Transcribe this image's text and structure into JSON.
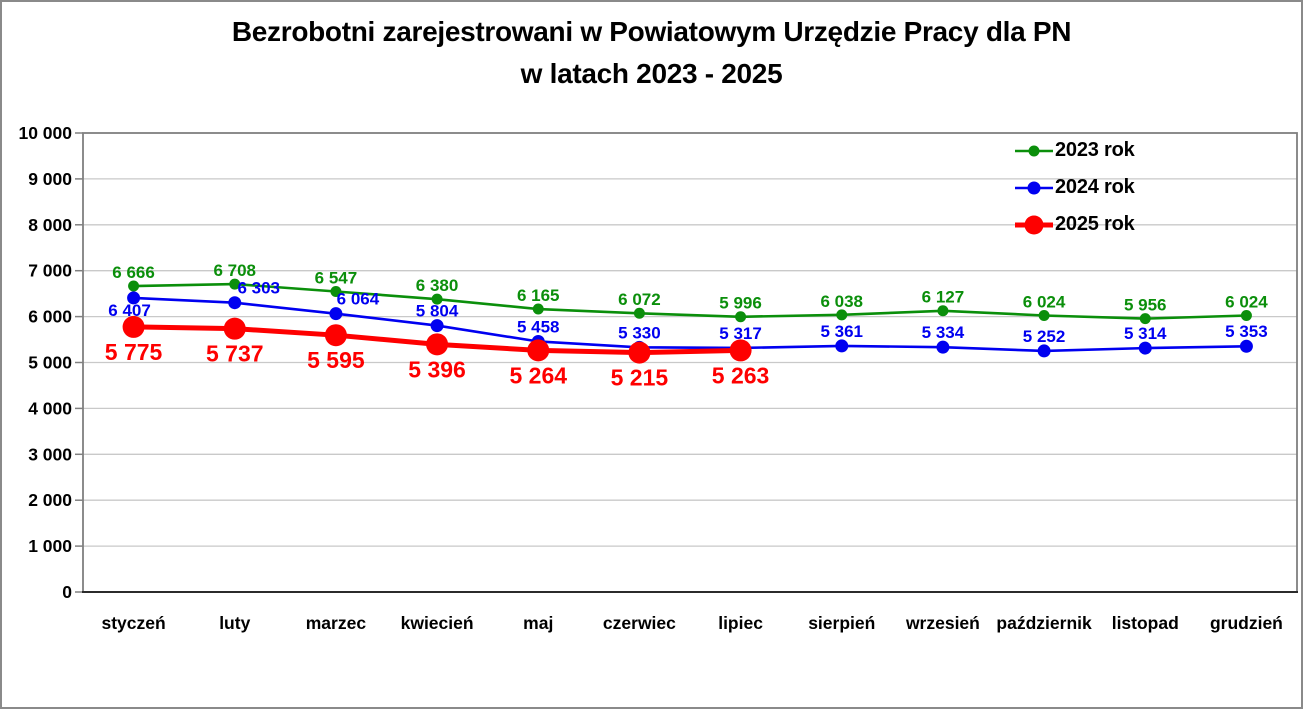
{
  "window": {
    "background": "#ffffff",
    "border_color": "#8a8a8a"
  },
  "title": {
    "line1": "Bezrobotni zarejestrowani w Powiatowym Urzędzie Pracy dla PN",
    "line2": "w latach 2023 - 2025"
  },
  "chart_data": {
    "type": "line",
    "title": "Bezrobotni zarejestrowani w Powiatowym Urzędzie Pracy dla PN w latach 2023 - 2025",
    "categories": [
      "styczeń",
      "luty",
      "marzec",
      "kwiecień",
      "maj",
      "czerwiec",
      "lipiec",
      "sierpień",
      "wrzesień",
      "październik",
      "listopad",
      "grudzień"
    ],
    "series": [
      {
        "name": "2023 rok",
        "color": "#0b8f0b",
        "values": [
          6666,
          6708,
          6547,
          6380,
          6165,
          6072,
          5996,
          6038,
          6127,
          6024,
          5956,
          6024
        ]
      },
      {
        "name": "2024 rok",
        "color": "#0000f0",
        "values": [
          6407,
          6303,
          6064,
          5804,
          5458,
          5330,
          5317,
          5361,
          5334,
          5252,
          5314,
          5353
        ]
      },
      {
        "name": "2025 rok",
        "color": "#fe0000",
        "values": [
          5775,
          5737,
          5595,
          5396,
          5264,
          5215,
          5263
        ]
      }
    ],
    "xlabel": "",
    "ylabel": "",
    "ylim": [
      0,
      10000
    ],
    "ytick_step": 1000,
    "ytick_labels": [
      "0",
      "1 000",
      "2 000",
      "3 000",
      "4 000",
      "5 000",
      "6 000",
      "7 000",
      "8 000",
      "9 000",
      "10 000"
    ],
    "grid": "horizontal",
    "gridline_color": "#c9c9c9",
    "axis_color": "#808080",
    "data_labels": true,
    "thousands_separator": "space",
    "legend_position": "top-right"
  }
}
